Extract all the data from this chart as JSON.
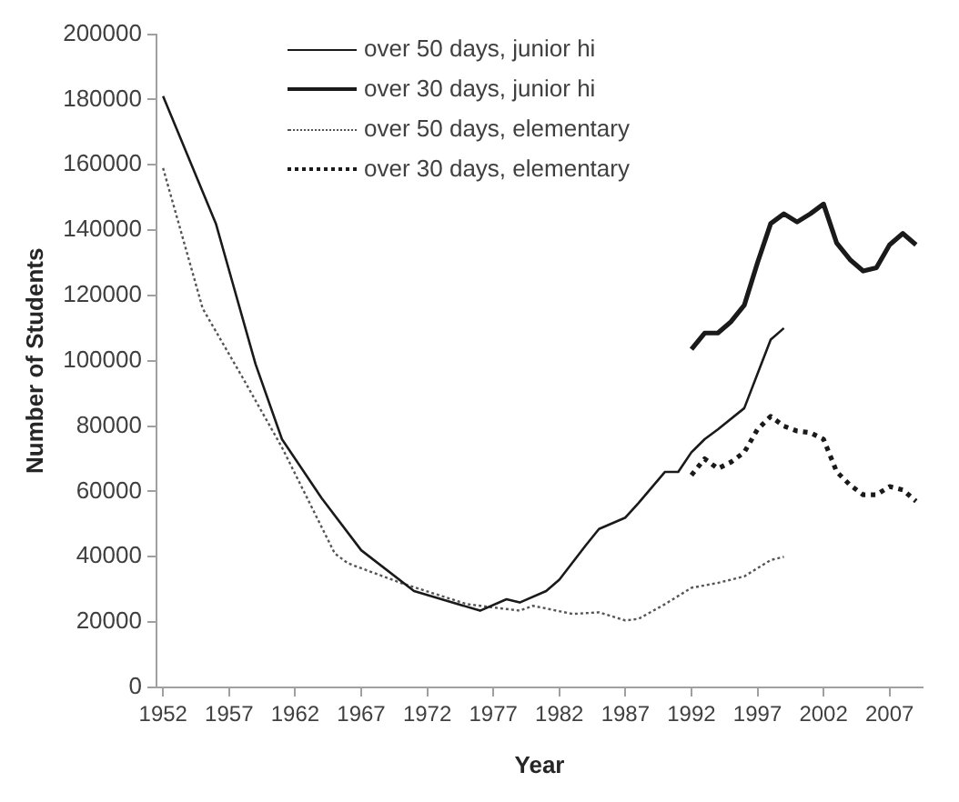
{
  "chart_data": {
    "type": "line",
    "xlabel": "Year",
    "ylabel": "Number of Students",
    "xlim": [
      1951.5,
      2009.5
    ],
    "xticks": [
      1952,
      1957,
      1962,
      1967,
      1972,
      1977,
      1982,
      1987,
      1992,
      1997,
      2002,
      2007
    ],
    "ylim": [
      0,
      200000
    ],
    "yticks": [
      0,
      20000,
      40000,
      60000,
      80000,
      100000,
      120000,
      140000,
      160000,
      180000,
      200000
    ],
    "grid": false,
    "legend": "top",
    "marker": "none",
    "series": [
      {
        "name": "over 50 days, junior hi",
        "color": "#1a1a1a",
        "line_style": "solid",
        "x": [
          1952,
          1956,
          1959,
          1961,
          1964,
          1967,
          1971,
          1976,
          1978,
          1979,
          1981,
          1982,
          1984,
          1985,
          1987,
          1988,
          1990,
          1991,
          1992,
          1993,
          1994,
          1996,
          1998,
          1999
        ],
        "values": [
          181000,
          142000,
          99000,
          76000,
          58000,
          42000,
          29500,
          23500,
          27000,
          26000,
          29500,
          33000,
          43500,
          48500,
          52000,
          56500,
          66000,
          66000,
          72000,
          76000,
          79000,
          85500,
          106500,
          110000
        ]
      },
      {
        "name": "over 30 days, junior hi",
        "color": "#1a1a1a",
        "line_style": "solid",
        "x": [
          1992,
          1993,
          1994,
          1995,
          1996,
          1997,
          1998,
          1999,
          2000,
          2001,
          2002,
          2003,
          2004,
          2005,
          2006,
          2007,
          2008,
          2009
        ],
        "values": [
          103500,
          108500,
          108500,
          112000,
          117000,
          130000,
          142000,
          145000,
          142500,
          145000,
          148000,
          136000,
          131000,
          127500,
          128500,
          135500,
          139000,
          135500
        ]
      },
      {
        "name": "over 50 days, elementary",
        "color": "#555555",
        "line_style": "dotted",
        "x": [
          1952,
          1955,
          1958,
          1961,
          1965,
          1966,
          1970,
          1975,
          1977,
          1979,
          1980,
          1983,
          1985,
          1987,
          1988,
          1990,
          1992,
          1994,
          1996,
          1998,
          1999
        ],
        "values": [
          159000,
          116000,
          95000,
          73500,
          41000,
          38000,
          32000,
          25500,
          24500,
          23500,
          25000,
          22500,
          23000,
          20500,
          21000,
          25500,
          30500,
          32000,
          34000,
          39000,
          40000
        ]
      },
      {
        "name": "over 30 days, elementary",
        "color": "#1a1a1a",
        "line_style": "dotted",
        "x": [
          1992,
          1993,
          1994,
          1995,
          1996,
          1997,
          1998,
          1999,
          2000,
          2001,
          2002,
          2003,
          2004,
          2005,
          2006,
          2007,
          2008,
          2009
        ],
        "values": [
          65000,
          70000,
          67000,
          69000,
          72000,
          79000,
          83000,
          80000,
          78500,
          78000,
          76000,
          66000,
          62000,
          59000,
          59000,
          61500,
          60500,
          57000
        ]
      }
    ]
  }
}
